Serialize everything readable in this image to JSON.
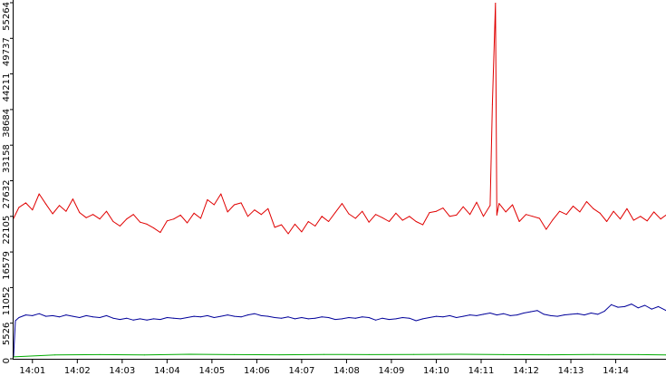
{
  "chart_data": {
    "type": "line",
    "title": "",
    "xlabel": "",
    "ylabel": "",
    "x_axis": {
      "unit": "minute",
      "range": [
        0.58,
        15.12
      ],
      "ticks": [
        {
          "value": 1,
          "label": "14:01"
        },
        {
          "value": 2,
          "label": "14:02"
        },
        {
          "value": 3,
          "label": "14:03"
        },
        {
          "value": 4,
          "label": "14:04"
        },
        {
          "value": 5,
          "label": "14:05"
        },
        {
          "value": 6,
          "label": "14:06"
        },
        {
          "value": 7,
          "label": "14:07"
        },
        {
          "value": 8,
          "label": "14:08"
        },
        {
          "value": 9,
          "label": "14:09"
        },
        {
          "value": 10,
          "label": "14:10"
        },
        {
          "value": 11,
          "label": "14:11"
        },
        {
          "value": 12,
          "label": "14:12"
        },
        {
          "value": 13,
          "label": "14:13"
        },
        {
          "value": 14,
          "label": "14:14"
        }
      ]
    },
    "y_axis": {
      "range": [
        0,
        55264
      ],
      "ticks": [
        {
          "value": 0,
          "label": "0"
        },
        {
          "value": 5526,
          "label": "5526"
        },
        {
          "value": 11052,
          "label": "11052"
        },
        {
          "value": 16579,
          "label": "16579"
        },
        {
          "value": 22105,
          "label": "22105"
        },
        {
          "value": 27632,
          "label": "27632"
        },
        {
          "value": 33158,
          "label": "33158"
        },
        {
          "value": 38684,
          "label": "38684"
        },
        {
          "value": 44211,
          "label": "44211"
        },
        {
          "value": 49737,
          "label": "49737"
        },
        {
          "value": 55264,
          "label": "55264"
        }
      ]
    },
    "grid": false,
    "legend": "none",
    "series": [
      {
        "color": "#e00000",
        "x": [
          0.58,
          0.7,
          0.85,
          1.0,
          1.15,
          1.3,
          1.45,
          1.6,
          1.75,
          1.9,
          2.05,
          2.2,
          2.35,
          2.5,
          2.65,
          2.8,
          2.95,
          3.1,
          3.25,
          3.4,
          3.55,
          3.7,
          3.85,
          4.0,
          4.15,
          4.3,
          4.45,
          4.6,
          4.75,
          4.9,
          5.05,
          5.2,
          5.35,
          5.5,
          5.65,
          5.8,
          5.95,
          6.1,
          6.25,
          6.4,
          6.55,
          6.7,
          6.85,
          7.0,
          7.15,
          7.3,
          7.45,
          7.6,
          7.75,
          7.9,
          8.05,
          8.2,
          8.35,
          8.5,
          8.65,
          8.8,
          8.95,
          9.1,
          9.25,
          9.4,
          9.55,
          9.7,
          9.85,
          10.0,
          10.15,
          10.3,
          10.45,
          10.6,
          10.75,
          10.9,
          11.05,
          11.2,
          11.25,
          11.32,
          11.35,
          11.4,
          11.55,
          11.7,
          11.85,
          12.0,
          12.15,
          12.3,
          12.45,
          12.6,
          12.75,
          12.9,
          13.05,
          13.2,
          13.35,
          13.5,
          13.65,
          13.8,
          13.95,
          14.1,
          14.25,
          14.4,
          14.55,
          14.7,
          14.85,
          15.0,
          15.12
        ],
        "values": [
          21800,
          23500,
          24200,
          23100,
          25600,
          24000,
          22500,
          23800,
          22900,
          24800,
          22700,
          21900,
          22400,
          21700,
          22900,
          21300,
          20600,
          21700,
          22400,
          21200,
          20900,
          20300,
          19600,
          21400,
          21700,
          22300,
          21100,
          22600,
          21800,
          24700,
          23900,
          25600,
          22800,
          23900,
          24200,
          22100,
          23100,
          22400,
          23300,
          20400,
          20800,
          19400,
          20900,
          19700,
          21300,
          20600,
          22100,
          21300,
          22700,
          24100,
          22500,
          21800,
          22900,
          21200,
          22400,
          21900,
          21300,
          22600,
          21500,
          22100,
          21300,
          20800,
          22700,
          22900,
          23400,
          22100,
          22300,
          23600,
          22400,
          24300,
          22100,
          23800,
          39500,
          55200,
          22300,
          24100,
          22800,
          23900,
          21300,
          22400,
          22100,
          21800,
          20100,
          21600,
          22900,
          22400,
          23700,
          22800,
          24400,
          23300,
          22600,
          21300,
          22900,
          21700,
          23300,
          21500,
          22100,
          21400,
          22800,
          21700,
          22300
        ]
      },
      {
        "color": "#00009a",
        "x": [
          0.58,
          0.62,
          0.7,
          0.85,
          1.0,
          1.15,
          1.3,
          1.45,
          1.6,
          1.75,
          1.9,
          2.05,
          2.2,
          2.35,
          2.5,
          2.65,
          2.8,
          2.95,
          3.1,
          3.25,
          3.4,
          3.55,
          3.7,
          3.85,
          4.0,
          4.15,
          4.3,
          4.45,
          4.6,
          4.75,
          4.9,
          5.05,
          5.2,
          5.35,
          5.5,
          5.65,
          5.8,
          5.95,
          6.1,
          6.25,
          6.4,
          6.55,
          6.7,
          6.85,
          7.0,
          7.15,
          7.3,
          7.45,
          7.6,
          7.75,
          7.9,
          8.05,
          8.2,
          8.35,
          8.5,
          8.65,
          8.8,
          8.95,
          9.1,
          9.25,
          9.4,
          9.55,
          9.7,
          9.85,
          10.0,
          10.15,
          10.3,
          10.45,
          10.6,
          10.75,
          10.9,
          11.05,
          11.2,
          11.35,
          11.5,
          11.65,
          11.8,
          11.95,
          12.1,
          12.25,
          12.4,
          12.55,
          12.7,
          12.85,
          13.0,
          13.15,
          13.3,
          13.45,
          13.6,
          13.75,
          13.9,
          14.05,
          14.2,
          14.35,
          14.5,
          14.65,
          14.8,
          14.95,
          15.12
        ],
        "values": [
          400,
          5900,
          6400,
          6800,
          6700,
          7000,
          6600,
          6700,
          6500,
          6800,
          6600,
          6400,
          6700,
          6500,
          6400,
          6700,
          6300,
          6100,
          6300,
          6000,
          6200,
          6000,
          6200,
          6100,
          6400,
          6300,
          6200,
          6400,
          6600,
          6500,
          6700,
          6400,
          6600,
          6800,
          6600,
          6500,
          6800,
          7000,
          6700,
          6600,
          6400,
          6300,
          6500,
          6200,
          6400,
          6200,
          6300,
          6500,
          6400,
          6100,
          6200,
          6400,
          6300,
          6500,
          6400,
          6000,
          6300,
          6100,
          6200,
          6400,
          6300,
          5900,
          6200,
          6400,
          6600,
          6500,
          6700,
          6400,
          6600,
          6800,
          6700,
          6900,
          7100,
          6800,
          7000,
          6700,
          6800,
          7100,
          7300,
          7500,
          6900,
          6700,
          6600,
          6800,
          6900,
          7000,
          6800,
          7100,
          6900,
          7400,
          8400,
          8000,
          8100,
          8500,
          7900,
          8300,
          7700,
          8100,
          7500
        ]
      },
      {
        "color": "#00aa00",
        "x": [
          0.58,
          1.5,
          2.5,
          3.5,
          4.5,
          5.5,
          6.5,
          7.5,
          8.5,
          9.5,
          10.5,
          11.5,
          12.5,
          13.5,
          14.5,
          15.12
        ],
        "values": [
          300,
          600,
          650,
          600,
          700,
          650,
          620,
          680,
          640,
          660,
          700,
          650,
          620,
          680,
          640,
          600
        ]
      }
    ]
  }
}
